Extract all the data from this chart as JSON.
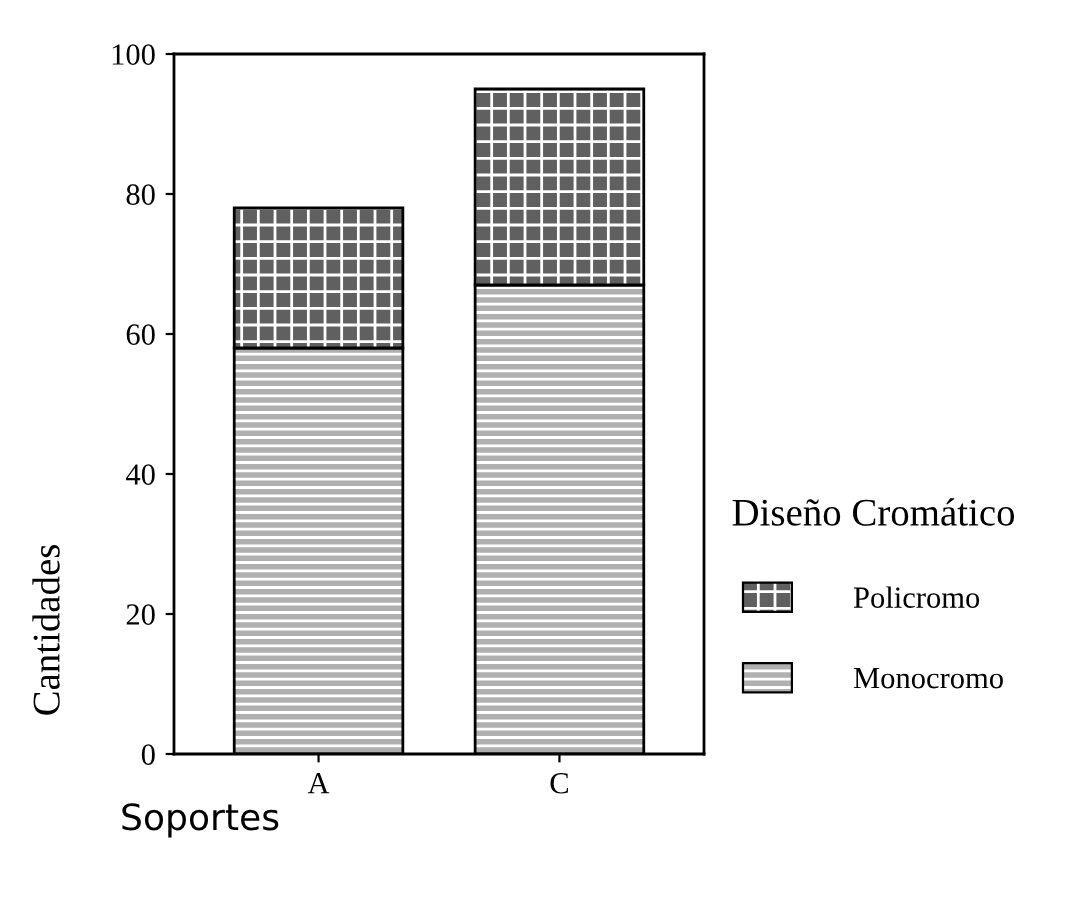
{
  "chart_data": {
    "type": "bar",
    "stacked": true,
    "xlabel": "Soportes",
    "ylabel": "Cantidades",
    "legend_title": "Diseño Cromático",
    "legend": "right",
    "categories": [
      "A",
      "C"
    ],
    "series": [
      {
        "name": "Monocromo",
        "color": "#b0b0b0",
        "values": [
          58,
          67
        ]
      },
      {
        "name": "Policromo",
        "color": "#606060",
        "values": [
          20,
          28
        ]
      }
    ],
    "ylim": [
      0,
      100
    ],
    "yticks": [
      0,
      20,
      40,
      60,
      80,
      100
    ],
    "grid": false
  }
}
